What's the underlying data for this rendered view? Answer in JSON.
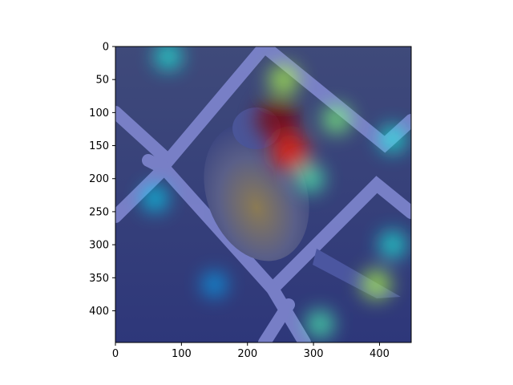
{
  "chart_data": {
    "type": "heatmap",
    "description_visible": "photo with heatmap overlay",
    "title": "",
    "xlabel": "",
    "ylabel": "",
    "xlim": [
      0,
      448
    ],
    "ylim": [
      448,
      0
    ],
    "xticks": [
      0,
      100,
      200,
      300,
      400
    ],
    "yticks": [
      0,
      50,
      100,
      150,
      200,
      250,
      300,
      350,
      400
    ],
    "xtick_labels": [
      "0",
      "100",
      "200",
      "300",
      "400"
    ],
    "ytick_labels": [
      "0",
      "50",
      "100",
      "150",
      "200",
      "250",
      "300",
      "350",
      "400"
    ],
    "grid": false,
    "colormap": "jet",
    "overlay_points": [
      {
        "x": 245,
        "y": 110,
        "value": 1.0
      },
      {
        "x": 265,
        "y": 160,
        "value": 0.85
      },
      {
        "x": 255,
        "y": 50,
        "value": 0.55
      },
      {
        "x": 295,
        "y": 200,
        "value": 0.45
      },
      {
        "x": 80,
        "y": 15,
        "value": 0.4
      },
      {
        "x": 335,
        "y": 110,
        "value": 0.5
      },
      {
        "x": 420,
        "y": 140,
        "value": 0.4
      },
      {
        "x": 395,
        "y": 360,
        "value": 0.55
      },
      {
        "x": 310,
        "y": 420,
        "value": 0.45
      },
      {
        "x": 60,
        "y": 230,
        "value": 0.35
      },
      {
        "x": 150,
        "y": 360,
        "value": 0.3
      },
      {
        "x": 420,
        "y": 300,
        "value": 0.4
      }
    ]
  }
}
